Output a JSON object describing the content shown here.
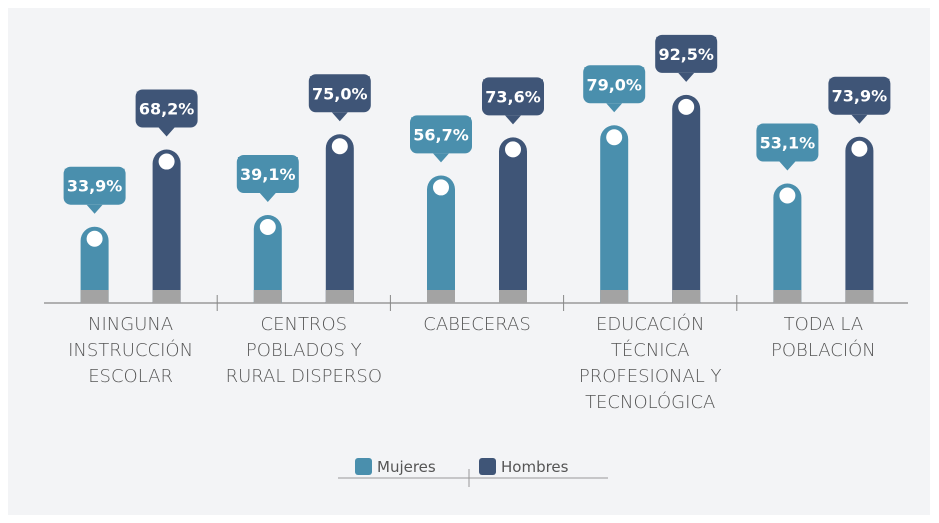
{
  "chart_data": {
    "type": "bar",
    "categories": [
      [
        "NINGUNA",
        "INSTRUCCIÓN",
        "ESCOLAR"
      ],
      [
        "CENTROS",
        "POBLADOS Y",
        "RURAL DISPERSO"
      ],
      [
        "CABECERAS"
      ],
      [
        "EDUCACIÓN",
        "TÉCNICA",
        "PROFESIONAL Y",
        "TECNOLÓGICA"
      ],
      [
        "TODA LA",
        "POBLACIÓN"
      ]
    ],
    "series": [
      {
        "name": "Mujeres",
        "color": "#4a8fad",
        "values": [
          33.9,
          39.1,
          56.7,
          79.0,
          53.1
        ],
        "value_labels": [
          "33,9%",
          "39,1%",
          "56,7%",
          "79,0%",
          "53,1%"
        ]
      },
      {
        "name": "Hombres",
        "color": "#3f5577",
        "values": [
          68.2,
          75.0,
          73.6,
          92.5,
          73.9
        ],
        "value_labels": [
          "68,2%",
          "75,0%",
          "73,6%",
          "92,5%",
          "73,9%"
        ]
      }
    ]
  }
}
